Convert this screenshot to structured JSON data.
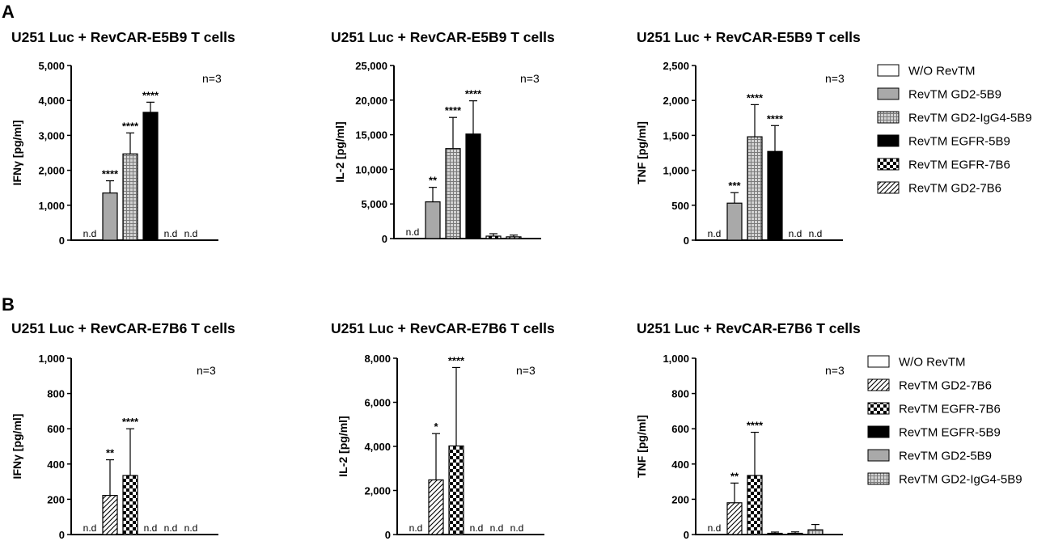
{
  "panels": [
    {
      "letter": "A",
      "charts": [
        {
          "title": "U251 Luc + RevCAR-E5B9 T cells",
          "note": "n=3",
          "chart_data": {
            "type": "bar",
            "ylabel": "IFNγ [pg/ml]",
            "ylim": [
              0,
              5000
            ],
            "yticks": [
              0,
              1000,
              2000,
              3000,
              4000,
              5000
            ],
            "ytick_labels": [
              "0",
              "1,000",
              "2,000",
              "3,000",
              "4,000",
              "5,000"
            ],
            "categories": [
              "W/O RevTM",
              "RevTM GD2-5B9",
              "RevTM GD2-IgG4-5B9",
              "RevTM EGFR-5B9",
              "RevTM EGFR-7B6",
              "RevTM GD2-7B6"
            ],
            "values": [
              null,
              1350,
              2470,
              3660,
              null,
              null
            ],
            "errors": [
              null,
              350,
              600,
              290,
              null,
              null
            ],
            "significance": [
              "",
              "****",
              "****",
              "****",
              "",
              ""
            ],
            "value_labels": [
              "n.d",
              "",
              "",
              "",
              "n.d",
              "n.d"
            ]
          }
        },
        {
          "title": "U251 Luc + RevCAR-E5B9 T cells",
          "note": "n=3",
          "chart_data": {
            "type": "bar",
            "ylabel": "IL-2 [pg/ml]",
            "ylim": [
              0,
              25000
            ],
            "yticks": [
              0,
              5000,
              10000,
              15000,
              20000,
              25000
            ],
            "ytick_labels": [
              "0",
              "5,000",
              "10,000",
              "15,000",
              "20,000",
              "25,000"
            ],
            "categories": [
              "W/O RevTM",
              "RevTM GD2-5B9",
              "RevTM GD2-IgG4-5B9",
              "RevTM EGFR-5B9",
              "RevTM EGFR-7B6",
              "RevTM GD2-7B6"
            ],
            "values": [
              null,
              5300,
              13000,
              15100,
              350,
              250
            ],
            "errors": [
              null,
              2100,
              4500,
              4800,
              350,
              250
            ],
            "significance": [
              "",
              "**",
              "****",
              "****",
              "",
              ""
            ],
            "value_labels": [
              "n.d",
              "",
              "",
              "",
              "",
              ""
            ]
          }
        },
        {
          "title": "U251 Luc + RevCAR-E5B9 T cells",
          "note": "n=3",
          "chart_data": {
            "type": "bar",
            "ylabel": "TNF [pg/ml]",
            "ylim": [
              0,
              2500
            ],
            "yticks": [
              0,
              500,
              1000,
              1500,
              2000,
              2500
            ],
            "ytick_labels": [
              "0",
              "500",
              "1,000",
              "1,500",
              "2,000",
              "2,500"
            ],
            "categories": [
              "W/O RevTM",
              "RevTM GD2-5B9",
              "RevTM GD2-IgG4-5B9",
              "RevTM EGFR-5B9",
              "RevTM EGFR-7B6",
              "RevTM GD2-7B6"
            ],
            "values": [
              null,
              530,
              1480,
              1270,
              null,
              null
            ],
            "errors": [
              null,
              150,
              460,
              370,
              null,
              null
            ],
            "significance": [
              "",
              "***",
              "****",
              "****",
              "",
              ""
            ],
            "value_labels": [
              "n.d",
              "",
              "",
              "",
              "n.d",
              "n.d"
            ]
          }
        }
      ],
      "legend": [
        {
          "label": "W/O RevTM",
          "pattern": "empty"
        },
        {
          "label": "RevTM GD2-5B9",
          "pattern": "gray"
        },
        {
          "label": "RevTM GD2-IgG4-5B9",
          "pattern": "grid"
        },
        {
          "label": "RevTM EGFR-5B9",
          "pattern": "black"
        },
        {
          "label": "RevTM EGFR-7B6",
          "pattern": "checker"
        },
        {
          "label": "RevTM GD2-7B6",
          "pattern": "hatch"
        }
      ]
    },
    {
      "letter": "B",
      "charts": [
        {
          "title": "U251 Luc + RevCAR-E7B6 T cells",
          "note": "n=3",
          "chart_data": {
            "type": "bar",
            "ylabel": "IFNγ [pg/ml]",
            "ylim": [
              0,
              1000
            ],
            "yticks": [
              0,
              200,
              400,
              600,
              800,
              1000
            ],
            "ytick_labels": [
              "0",
              "200",
              "400",
              "600",
              "800",
              "1,000"
            ],
            "categories": [
              "W/O RevTM",
              "RevTM GD2-7B6",
              "RevTM EGFR-7B6",
              "RevTM EGFR-5B9",
              "RevTM GD2-5B9",
              "RevTM GD2-IgG4-5B9"
            ],
            "values": [
              null,
              222,
              335,
              null,
              null,
              null
            ],
            "errors": [
              null,
              202,
              265,
              null,
              null,
              null
            ],
            "significance": [
              "",
              "**",
              "****",
              "",
              "",
              ""
            ],
            "value_labels": [
              "n.d",
              "",
              "",
              "n.d",
              "n.d",
              "n.d"
            ]
          }
        },
        {
          "title": "U251 Luc + RevCAR-E7B6 T cells",
          "note": "n=3",
          "chart_data": {
            "type": "bar",
            "ylabel": "IL-2 [pg/ml]",
            "ylim": [
              0,
              8000
            ],
            "yticks": [
              0,
              2000,
              4000,
              6000,
              8000
            ],
            "ytick_labels": [
              "0",
              "2,000",
              "4,000",
              "6,000",
              "8,000"
            ],
            "categories": [
              "W/O RevTM",
              "RevTM GD2-7B6",
              "RevTM EGFR-7B6",
              "RevTM EGFR-5B9",
              "RevTM GD2-5B9",
              "RevTM GD2-IgG4-5B9"
            ],
            "values": [
              null,
              2480,
              4020,
              null,
              null,
              null
            ],
            "errors": [
              null,
              2100,
              3560,
              null,
              null,
              null
            ],
            "significance": [
              "",
              "*",
              "****",
              "",
              "",
              ""
            ],
            "value_labels": [
              "n.d",
              "",
              "",
              "n.d",
              "n.d",
              "n.d"
            ]
          }
        },
        {
          "title": "U251 Luc + RevCAR-E7B6 T cells",
          "note": "n=3",
          "chart_data": {
            "type": "bar",
            "ylabel": "TNF [pg/ml]",
            "ylim": [
              0,
              1000
            ],
            "yticks": [
              0,
              200,
              400,
              600,
              800,
              1000
            ],
            "ytick_labels": [
              "0",
              "200",
              "400",
              "600",
              "800",
              "1,000"
            ],
            "categories": [
              "W/O RevTM",
              "RevTM GD2-7B6",
              "RevTM EGFR-7B6",
              "RevTM EGFR-5B9",
              "RevTM GD2-5B9",
              "RevTM GD2-IgG4-5B9"
            ],
            "values": [
              null,
              180,
              335,
              4,
              5,
              27
            ],
            "errors": [
              null,
              112,
              245,
              10,
              10,
              30
            ],
            "significance": [
              "",
              "**",
              "****",
              "",
              "",
              ""
            ],
            "value_labels": [
              "n.d",
              "",
              "",
              "",
              "",
              ""
            ]
          }
        }
      ],
      "legend": [
        {
          "label": "W/O RevTM",
          "pattern": "empty"
        },
        {
          "label": "RevTM GD2-7B6",
          "pattern": "hatch"
        },
        {
          "label": "RevTM EGFR-7B6",
          "pattern": "checker"
        },
        {
          "label": "RevTM EGFR-5B9",
          "pattern": "black"
        },
        {
          "label": "RevTM GD2-5B9",
          "pattern": "gray"
        },
        {
          "label": "RevTM GD2-IgG4-5B9",
          "pattern": "grid"
        }
      ]
    }
  ],
  "colors": {
    "axis": "#000000",
    "gray_fill": "#a9a9a9",
    "black_fill": "#000000",
    "grid_fill": "#d0d0d0",
    "grid_lines": "#8a8a8a"
  }
}
